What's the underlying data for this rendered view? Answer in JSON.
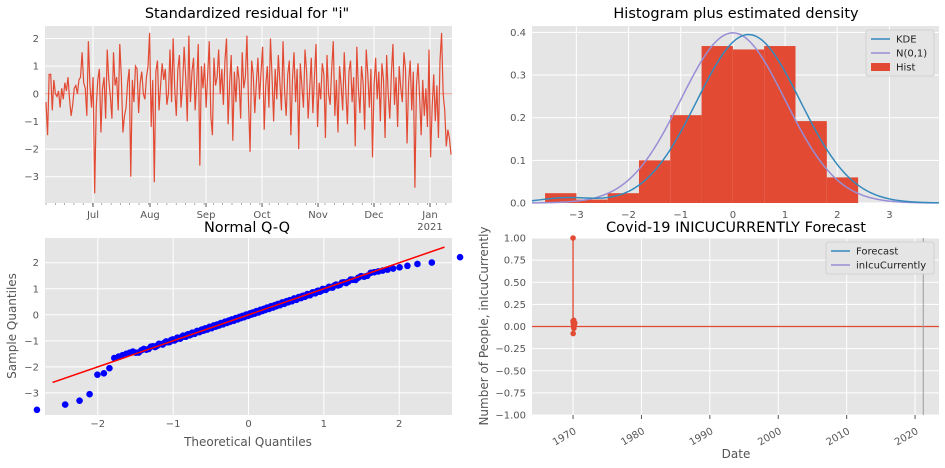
{
  "colors": {
    "panel_bg": "#E5E5E5",
    "grid": "#FFFFFF",
    "red": "#E24A33",
    "blue": "#348ABD",
    "purple": "#988ED5",
    "qq_points": "#0000FF",
    "qq_line": "#FF0000"
  },
  "chart_data": [
    {
      "type": "line",
      "title": "Standardized residual for \"i\"",
      "xlabel": "",
      "ylabel": "",
      "ylim": [
        -3.95,
        2.45
      ],
      "yticks": [
        -3,
        -2,
        -1,
        0,
        1,
        2
      ],
      "xticks": [
        "Jul",
        "Aug",
        "Sep",
        "Oct",
        "Nov",
        "Dec",
        "Jan\n2021"
      ],
      "series": [
        {
          "values": [
            -0.3,
            -1.5,
            0.7,
            0.7,
            -0.6,
            0.5,
            0.0,
            -0.1,
            0.1,
            -0.5,
            0.2,
            -0.2,
            0.4,
            0.1,
            0.6,
            -0.2,
            -0.8,
            -0.4,
            0.2,
            0.3,
            0.0,
            0.5,
            0.6,
            1.5,
            0.4,
            0.2,
            -0.8,
            1.9,
            0.3,
            -0.5,
            0.6,
            -3.6,
            -0.5,
            0.5,
            0.9,
            -1.4,
            0.2,
            0.6,
            -0.9,
            1.6,
            0.5,
            -0.1,
            -0.9,
            1.5,
            0.3,
            0.6,
            -0.6,
            1.8,
            0.6,
            -1.4,
            -0.8,
            -0.5,
            0.4,
            0.9,
            -3.0,
            0.5,
            -0.3,
            1.0,
            0.9,
            -0.7,
            0.4,
            0.8,
            0.0,
            -0.2,
            0.6,
            1.0,
            2.2,
            -1.2,
            0.5,
            -3.2,
            0.8,
            1.2,
            -0.6,
            0.3,
            1.1,
            0.5,
            0.9,
            -0.4,
            0.0,
            1.6,
            -0.3,
            2.0,
            0.2,
            -0.8,
            0.9,
            1.4,
            -0.5,
            0.3,
            1.7,
            0.6,
            -1.0,
            2.1,
            -0.3,
            0.8,
            1.3,
            -0.6,
            0.4,
            1.8,
            -2.6,
            1.0,
            0.2,
            1.1,
            -0.5,
            0.7,
            1.9,
            -0.8,
            -1.5,
            1.3,
            0.3,
            0.6,
            1.6,
            0.0,
            0.9,
            -0.4,
            1.2,
            2.0,
            -1.1,
            0.4,
            1.4,
            -1.7,
            0.8,
            -0.3,
            1.0,
            0.5,
            -0.9,
            1.5,
            0.2,
            0.6,
            2.1,
            -0.3,
            -2.1,
            1.2,
            0.7,
            -0.7,
            0.4,
            1.3,
            -0.2,
            0.8,
            1.7,
            -1.3,
            0.3,
            1.0,
            -0.5,
            2.0,
            0.6,
            -1.0,
            0.9,
            -0.2,
            1.4,
            0.4,
            -0.6,
            1.9,
            0.1,
            -0.8,
            0.7,
            1.2,
            -1.5,
            0.5,
            1.5,
            -0.3,
            0.9,
            -2.0,
            1.1,
            0.3,
            -0.5,
            1.6,
            0.8,
            -0.9,
            0.2,
            1.3,
            -0.7,
            0.6,
            1.8,
            -1.2,
            0.4,
            -0.2,
            1.1,
            0.7,
            -1.6,
            1.4,
            0.0,
            -0.4,
            0.9,
            1.9,
            -0.8,
            0.5,
            -1.4,
            1.0,
            0.3,
            -0.6,
            1.5,
            0.1,
            -1.1,
            0.8,
            1.2,
            -0.3,
            0.6,
            -1.9,
            1.7,
            0.2,
            -0.7,
            1.0,
            0.4,
            -1.3,
            1.6,
            0.7,
            -0.5,
            0.9,
            -2.3,
            0.3,
            1.3,
            -0.2,
            0.8,
            -1.0,
            1.1,
            0.5,
            -1.6,
            1.4,
            0.0,
            -0.9,
            0.7,
            1.8,
            -0.4,
            0.6,
            -1.2,
            1.0,
            0.2,
            -0.3,
            1.5,
            0.9,
            -1.8,
            0.4,
            1.2,
            -0.6,
            0.8,
            -3.4,
            0.3,
            1.1,
            -0.1,
            -1.5,
            0.5,
            -0.8,
            0.2,
            -1.2,
            1.6,
            -2.3,
            -0.5,
            0.7,
            -1.0,
            0.3,
            -1.6,
            1.2,
            2.2,
            0.0,
            -0.6,
            -1.9,
            -1.3,
            -1.6,
            -2.2
          ]
        }
      ],
      "zero_line": 0
    },
    {
      "type": "bar",
      "title": "Histogram plus estimated density",
      "xlim": [
        -3.85,
        3.95
      ],
      "ylim": [
        0,
        0.415
      ],
      "xticks": [
        -3,
        -2,
        -1,
        0,
        1,
        2,
        3
      ],
      "yticks": [
        0.0,
        0.1,
        0.2,
        0.3,
        0.4
      ],
      "bins": [
        {
          "x0": -3.6,
          "x1": -3.0,
          "height": 0.023
        },
        {
          "x0": -3.0,
          "x1": -2.4,
          "height": 0.008
        },
        {
          "x0": -2.4,
          "x1": -1.8,
          "height": 0.023
        },
        {
          "x0": -1.8,
          "x1": -1.2,
          "height": 0.1
        },
        {
          "x0": -1.2,
          "x1": -0.6,
          "height": 0.206
        },
        {
          "x0": -0.6,
          "x1": 0.0,
          "height": 0.368
        },
        {
          "x0": 0.0,
          "x1": 0.6,
          "height": 0.36
        },
        {
          "x0": 0.6,
          "x1": 1.2,
          "height": 0.368
        },
        {
          "x0": 1.2,
          "x1": 1.8,
          "height": 0.192
        },
        {
          "x0": 1.8,
          "x1": 2.4,
          "height": 0.06
        }
      ],
      "kde_peak": 0.395,
      "kde_center": 0.3,
      "kde_sd": 0.99,
      "legend": [
        {
          "label": "KDE",
          "kind": "line",
          "color": "#348ABD"
        },
        {
          "label": "N(0,1)",
          "kind": "line",
          "color": "#988ED5"
        },
        {
          "label": "Hist",
          "kind": "patch",
          "color": "#E24A33"
        }
      ],
      "legend_position": "top-right"
    },
    {
      "type": "scatter",
      "title": "Normal Q-Q",
      "xlabel": "Theoretical Quantiles",
      "ylabel": "Sample Quantiles",
      "xlim": [
        -2.7,
        2.7
      ],
      "ylim": [
        -3.85,
        2.95
      ],
      "xticks": [
        -2,
        -1,
        0,
        1,
        2
      ],
      "yticks": [
        -3,
        -2,
        -1,
        0,
        1,
        2
      ],
      "reference_line": {
        "x": [
          -2.6,
          2.6
        ],
        "y": [
          -2.6,
          2.6
        ]
      },
      "n_points": 200
    },
    {
      "type": "line",
      "title": "Covid-19 INICUCURRENTLY Forecast",
      "xlabel": "Date",
      "ylabel": "Number of People, inIcuCurrently",
      "xlim": [
        1964,
        2023.5
      ],
      "ylim": [
        -1.0,
        1.0
      ],
      "xticks": [
        1970,
        1980,
        1990,
        2000,
        2010,
        2020
      ],
      "yticks": [
        -1.0,
        -0.75,
        -0.5,
        -0.25,
        0.0,
        0.25,
        0.5,
        0.75,
        1.0
      ],
      "ytick_labels": [
        "−1.00",
        "−0.75",
        "−0.50",
        "−0.25",
        "0.00",
        "0.25",
        "0.50",
        "0.75",
        "1.00"
      ],
      "hline": 0.0,
      "vline_x": 2021.2,
      "markers": [
        {
          "x": 1970.0,
          "y": 1.0
        },
        {
          "x": 1970.0,
          "y": 0.06
        },
        {
          "x": 1970.05,
          "y": 0.03
        },
        {
          "x": 1970.08,
          "y": 0.0
        },
        {
          "x": 1970.12,
          "y": -0.02
        },
        {
          "x": 1970.02,
          "y": -0.08
        },
        {
          "x": 1970.18,
          "y": 0.02
        },
        {
          "x": 1970.25,
          "y": 0.04
        },
        {
          "x": 1970.1,
          "y": 0.07
        }
      ],
      "legend": [
        {
          "label": "Forecast",
          "kind": "line",
          "color": "#348ABD"
        },
        {
          "label": "inIcuCurrently",
          "kind": "line",
          "color": "#988ED5"
        }
      ],
      "legend_position": "top-right"
    }
  ]
}
